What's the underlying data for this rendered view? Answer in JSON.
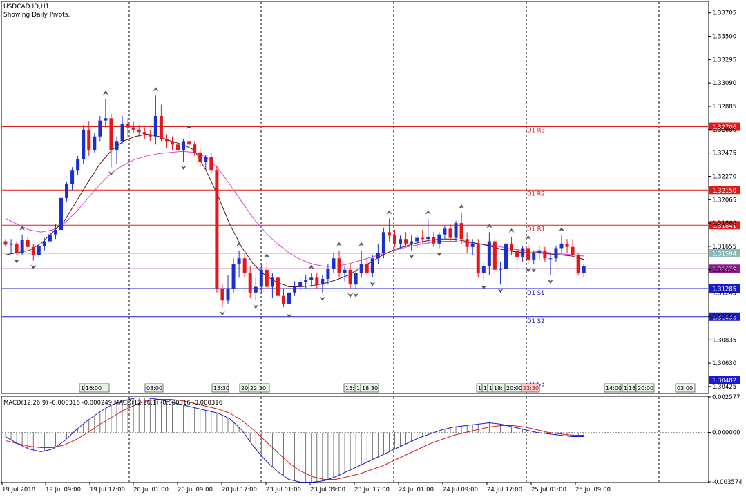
{
  "header": {
    "symbol": "USDCAD.ID,H1",
    "subtitle": "Showing Daily Pivots."
  },
  "colors": {
    "bull": "#1a2fd0",
    "bear": "#e8141a",
    "ma_fast": "#5a1212",
    "ma_slow": "#e040e0",
    "pivot_resistance": "#e01b1b",
    "pivot_support": "#1a1ad0",
    "pivot_mid": "#8fb9b9",
    "pivot_purple": "#8a1a8a",
    "macd_signal": "#d81b1b",
    "macd_main": "#1a1ad0",
    "macd_hist": "#555555"
  },
  "chart_data": [
    {
      "type": "candlestick",
      "title": "USDCAD.ID,H1",
      "ylim": [
        1.3037,
        1.338
      ],
      "y_ticks": [
        "1.33705",
        "1.33500",
        "1.33295",
        "1.33090",
        "1.32885",
        "1.32680",
        "1.32475",
        "1.32270",
        "1.32065",
        "1.31860",
        "1.31655",
        "1.31450",
        "1.31245",
        "1.31040",
        "1.30835",
        "1.30630",
        "1.30425"
      ],
      "y_tick_values": [
        1.33705,
        1.335,
        1.33295,
        1.3309,
        1.32885,
        1.3268,
        1.32475,
        1.3227,
        1.32065,
        1.3186,
        1.31655,
        1.3145,
        1.31245,
        1.3104,
        1.30835,
        1.3063,
        1.30425
      ],
      "x_labels": [
        "19 Jul 2018",
        "19 Jul 09:00",
        "19 Jul 17:00",
        "20 Jul 01:00",
        "20 Jul 09:00",
        "20 Jul 17:00",
        "23 Jul 01:00",
        "23 Jul 09:00",
        "23 Jul 17:00",
        "24 Jul 01:00",
        "24 Jul 09:00",
        "24 Jul 17:00",
        "25 Jul 01:00",
        "25 Jul 09:00"
      ],
      "pivot_lines": [
        {
          "label": "D1 R3",
          "value": 1.32706,
          "value_text": "1.32706",
          "kind": "resistance"
        },
        {
          "label": "D1 R2",
          "value": 1.3215,
          "value_text": "1.32150",
          "kind": "resistance"
        },
        {
          "label": "D1 R1",
          "value": 1.31841,
          "value_text": "1.31841",
          "kind": "resistance"
        },
        {
          "label": "",
          "value": 1.31594,
          "value_text": "1.31594",
          "kind": "mid"
        },
        {
          "label": "",
          "value": 1.31459,
          "value_text": "1.31459",
          "kind": "purple"
        },
        {
          "label": "D1 S1",
          "value": 1.31285,
          "value_text": "1.31285",
          "kind": "support"
        },
        {
          "label": "D1 S2",
          "value": 1.31038,
          "value_text": "1.31038",
          "kind": "support"
        },
        {
          "label": "D1 S3",
          "value": 1.30482,
          "value_text": "1.30482",
          "kind": "support"
        }
      ],
      "time_markers": [
        "1",
        "16:00",
        "03:00",
        "15:30",
        "20:",
        "22:30",
        "15:",
        "1",
        "18:30",
        "1",
        "1",
        "1",
        "18:",
        "20:00",
        "23:30",
        "14:00",
        "1",
        "18",
        "20:00",
        "03:00"
      ],
      "candles": [
        [
          1.317,
          1.3172,
          1.3165,
          1.3167
        ],
        [
          1.3167,
          1.3172,
          1.316,
          1.3168
        ],
        [
          1.3168,
          1.317,
          1.3158,
          1.316
        ],
        [
          1.316,
          1.3176,
          1.3158,
          1.3171
        ],
        [
          1.3171,
          1.3174,
          1.3163,
          1.3165
        ],
        [
          1.3165,
          1.3168,
          1.3153,
          1.3158
        ],
        [
          1.3158,
          1.3168,
          1.3155,
          1.3166
        ],
        [
          1.3166,
          1.3173,
          1.3162,
          1.317
        ],
        [
          1.317,
          1.318,
          1.3168,
          1.3176
        ],
        [
          1.3176,
          1.3185,
          1.3172,
          1.318
        ],
        [
          1.318,
          1.321,
          1.3178,
          1.3208
        ],
        [
          1.3208,
          1.3222,
          1.3205,
          1.322
        ],
        [
          1.322,
          1.3235,
          1.3215,
          1.3232
        ],
        [
          1.3232,
          1.3245,
          1.3228,
          1.3242
        ],
        [
          1.3242,
          1.3272,
          1.3238,
          1.3268
        ],
        [
          1.3268,
          1.3275,
          1.3245,
          1.325
        ],
        [
          1.325,
          1.3265,
          1.3248,
          1.3262
        ],
        [
          1.3262,
          1.328,
          1.3258,
          1.3276
        ],
        [
          1.3276,
          1.3295,
          1.327,
          1.3278
        ],
        [
          1.3278,
          1.3282,
          1.3235,
          1.325
        ],
        [
          1.325,
          1.3262,
          1.3238,
          1.3258
        ],
        [
          1.3258,
          1.328,
          1.3255,
          1.3273
        ],
        [
          1.3273,
          1.3278,
          1.3262,
          1.327
        ],
        [
          1.327,
          1.3275,
          1.3265,
          1.3268
        ],
        [
          1.3268,
          1.3272,
          1.3262,
          1.3266
        ],
        [
          1.3266,
          1.327,
          1.326,
          1.3264
        ],
        [
          1.3264,
          1.3268,
          1.3258,
          1.3262
        ],
        [
          1.3262,
          1.3298,
          1.3255,
          1.328
        ],
        [
          1.328,
          1.329,
          1.3258,
          1.326
        ],
        [
          1.326,
          1.3264,
          1.3252,
          1.3258
        ],
        [
          1.3258,
          1.3262,
          1.325,
          1.3255
        ],
        [
          1.3255,
          1.3262,
          1.3245,
          1.325
        ],
        [
          1.325,
          1.326,
          1.324,
          1.3258
        ],
        [
          1.3258,
          1.3265,
          1.3252,
          1.3255
        ],
        [
          1.3255,
          1.3258,
          1.3245,
          1.3248
        ],
        [
          1.3248,
          1.3252,
          1.3235,
          1.324
        ],
        [
          1.324,
          1.3246,
          1.3232,
          1.3244
        ],
        [
          1.3244,
          1.3248,
          1.323,
          1.3232
        ],
        [
          1.3232,
          1.3236,
          1.3125,
          1.3128
        ],
        [
          1.3128,
          1.3132,
          1.3112,
          1.3118
        ],
        [
          1.3118,
          1.314,
          1.3115,
          1.3128
        ],
        [
          1.3128,
          1.3155,
          1.3125,
          1.315
        ],
        [
          1.315,
          1.3162,
          1.3138,
          1.3155
        ],
        [
          1.3155,
          1.316,
          1.3138,
          1.3142
        ],
        [
          1.3142,
          1.3148,
          1.312,
          1.3125
        ],
        [
          1.3125,
          1.3138,
          1.3118,
          1.313
        ],
        [
          1.313,
          1.315,
          1.3125,
          1.3145
        ],
        [
          1.3145,
          1.3152,
          1.3128,
          1.313
        ],
        [
          1.313,
          1.3142,
          1.312,
          1.3138
        ],
        [
          1.3138,
          1.314,
          1.3118,
          1.3122
        ],
        [
          1.3122,
          1.3128,
          1.3112,
          1.3115
        ],
        [
          1.3115,
          1.313,
          1.311,
          1.3125
        ],
        [
          1.3125,
          1.3135,
          1.3122,
          1.313
        ],
        [
          1.313,
          1.3138,
          1.3126,
          1.3134
        ],
        [
          1.3134,
          1.314,
          1.3128,
          1.3136
        ],
        [
          1.3136,
          1.3142,
          1.313,
          1.3138
        ],
        [
          1.3138,
          1.3142,
          1.3128,
          1.3132
        ],
        [
          1.3132,
          1.314,
          1.3125,
          1.3137
        ],
        [
          1.3137,
          1.315,
          1.3132,
          1.3146
        ],
        [
          1.3146,
          1.316,
          1.3142,
          1.3155
        ],
        [
          1.3155,
          1.3162,
          1.3138,
          1.3142
        ],
        [
          1.3142,
          1.3148,
          1.3135,
          1.3145
        ],
        [
          1.3145,
          1.315,
          1.3128,
          1.3132
        ],
        [
          1.3132,
          1.3145,
          1.3128,
          1.3142
        ],
        [
          1.3142,
          1.3162,
          1.3138,
          1.315
        ],
        [
          1.315,
          1.3155,
          1.314,
          1.3142
        ],
        [
          1.3142,
          1.3158,
          1.3138,
          1.3155
        ],
        [
          1.3155,
          1.3168,
          1.315,
          1.316
        ],
        [
          1.316,
          1.3182,
          1.3155,
          1.3178
        ],
        [
          1.3178,
          1.319,
          1.317,
          1.3175
        ],
        [
          1.3175,
          1.318,
          1.3165,
          1.3168
        ],
        [
          1.3168,
          1.3175,
          1.3163,
          1.3172
        ],
        [
          1.3172,
          1.3178,
          1.3165,
          1.3168
        ],
        [
          1.3168,
          1.3175,
          1.3162,
          1.317
        ],
        [
          1.317,
          1.3176,
          1.3164,
          1.3173
        ],
        [
          1.3173,
          1.318,
          1.3168,
          1.3172
        ],
        [
          1.3172,
          1.319,
          1.3168,
          1.3174
        ],
        [
          1.3174,
          1.3178,
          1.3165,
          1.3168
        ],
        [
          1.3168,
          1.3178,
          1.3164,
          1.3176
        ],
        [
          1.3176,
          1.3183,
          1.3172,
          1.3181
        ],
        [
          1.3181,
          1.3185,
          1.317,
          1.3173
        ],
        [
          1.3173,
          1.3188,
          1.317,
          1.3186
        ],
        [
          1.3186,
          1.3195,
          1.3168,
          1.3172
        ],
        [
          1.3172,
          1.3178,
          1.316,
          1.3165
        ],
        [
          1.3165,
          1.3172,
          1.3158,
          1.3168
        ],
        [
          1.3168,
          1.3172,
          1.3138,
          1.3142
        ],
        [
          1.3142,
          1.3152,
          1.3135,
          1.3148
        ],
        [
          1.3148,
          1.3178,
          1.314,
          1.317
        ],
        [
          1.317,
          1.3174,
          1.314,
          1.3145
        ],
        [
          1.3145,
          1.3152,
          1.3132,
          1.3146
        ],
        [
          1.3146,
          1.317,
          1.3142,
          1.3168
        ],
        [
          1.3168,
          1.3174,
          1.3158,
          1.3162
        ],
        [
          1.3162,
          1.3168,
          1.315,
          1.3156
        ],
        [
          1.3156,
          1.3166,
          1.3152,
          1.3164
        ],
        [
          1.3164,
          1.3168,
          1.315,
          1.3154
        ],
        [
          1.3154,
          1.3162,
          1.315,
          1.316
        ],
        [
          1.316,
          1.3166,
          1.3154,
          1.3162
        ],
        [
          1.3162,
          1.3165,
          1.3152,
          1.3155
        ],
        [
          1.3155,
          1.316,
          1.314,
          1.3155
        ],
        [
          1.3155,
          1.3166,
          1.3152,
          1.3164
        ],
        [
          1.3164,
          1.3175,
          1.316,
          1.3168
        ],
        [
          1.3168,
          1.3172,
          1.316,
          1.3165
        ],
        [
          1.3165,
          1.3172,
          1.3156,
          1.3158
        ],
        [
          1.3158,
          1.316,
          1.314,
          1.3142
        ],
        [
          1.3142,
          1.315,
          1.3138,
          1.3148
        ]
      ],
      "ma_fast": [
        1.3158,
        1.316,
        1.3162,
        1.3168,
        1.3178,
        1.3188,
        1.3205,
        1.3222,
        1.3238,
        1.325,
        1.3258,
        1.3262,
        1.3264,
        1.3262,
        1.3258,
        1.3255,
        1.325,
        1.3232,
        1.321,
        1.3185,
        1.3165,
        1.315,
        1.314,
        1.3134,
        1.313,
        1.313,
        1.3131,
        1.3133,
        1.3136,
        1.314,
        1.3146,
        1.3152,
        1.3158,
        1.3163,
        1.3166,
        1.3169,
        1.3171,
        1.3172,
        1.3172,
        1.317,
        1.3168,
        1.3166,
        1.3163,
        1.3161,
        1.316,
        1.316,
        1.3159,
        1.3158,
        1.3157,
        1.3154
      ],
      "ma_slow": [
        1.319,
        1.3185,
        1.318,
        1.3178,
        1.318,
        1.3186,
        1.3196,
        1.3208,
        1.322,
        1.323,
        1.3237,
        1.3242,
        1.3245,
        1.3247,
        1.3248,
        1.3249,
        1.3248,
        1.3244,
        1.3234,
        1.322,
        1.3205,
        1.319,
        1.3178,
        1.3168,
        1.316,
        1.3154,
        1.315,
        1.3148,
        1.3148,
        1.315,
        1.3153,
        1.3156,
        1.3159,
        1.3162,
        1.3165,
        1.3167,
        1.3169,
        1.317,
        1.317,
        1.3169,
        1.3168,
        1.3167,
        1.3165,
        1.3163,
        1.3162,
        1.3161,
        1.316,
        1.3159,
        1.3158,
        1.3157
      ]
    },
    {
      "type": "macd",
      "label_text": "MACD(12,26,9) -0.000316 -0.000249 MACD(12,26,1) -0.000316 -0.000316",
      "ylim": [
        -0.003574,
        0.002577
      ],
      "y_ticks": [
        "0.002577",
        "0.000000",
        "-0.003574"
      ],
      "y_tick_values": [
        0.002577,
        0.0,
        -0.003574
      ],
      "histogram": [
        -0.0003,
        -0.0008,
        -0.0012,
        -0.0014,
        -0.0012,
        -0.0006,
        0.0002,
        0.0009,
        0.0015,
        0.002,
        0.0023,
        0.0025,
        0.0025,
        0.0024,
        0.0022,
        0.002,
        0.0018,
        0.0016,
        0.0014,
        0.001,
        0.0002,
        -0.001,
        -0.002,
        -0.0028,
        -0.0034,
        -0.0036,
        -0.0036,
        -0.0035,
        -0.0032,
        -0.0028,
        -0.0024,
        -0.002,
        -0.0016,
        -0.0012,
        -0.0008,
        -0.0004,
        -0.0001,
        0.0002,
        0.0004,
        0.0005,
        0.0006,
        0.0007,
        0.0006,
        0.0004,
        0.0002,
        0.0,
        -0.0001,
        -0.0002,
        -0.0003,
        -0.0003
      ],
      "signal": [
        -0.0006,
        -0.0008,
        -0.001,
        -0.0011,
        -0.0011,
        -0.0009,
        -0.0005,
        0.0,
        0.0006,
        0.0011,
        0.0016,
        0.002,
        0.0023,
        0.0024,
        0.0024,
        0.0023,
        0.0021,
        0.0019,
        0.0017,
        0.0014,
        0.0009,
        0.0002,
        -0.0006,
        -0.0014,
        -0.0022,
        -0.0028,
        -0.0032,
        -0.0034,
        -0.0034,
        -0.0032,
        -0.003,
        -0.0027,
        -0.0024,
        -0.002,
        -0.0016,
        -0.0012,
        -0.0008,
        -0.0005,
        -0.0002,
        0.0,
        0.0002,
        0.0004,
        0.0005,
        0.0005,
        0.0004,
        0.0002,
        0.0,
        -0.0001,
        -0.0002,
        -0.0002
      ]
    }
  ]
}
